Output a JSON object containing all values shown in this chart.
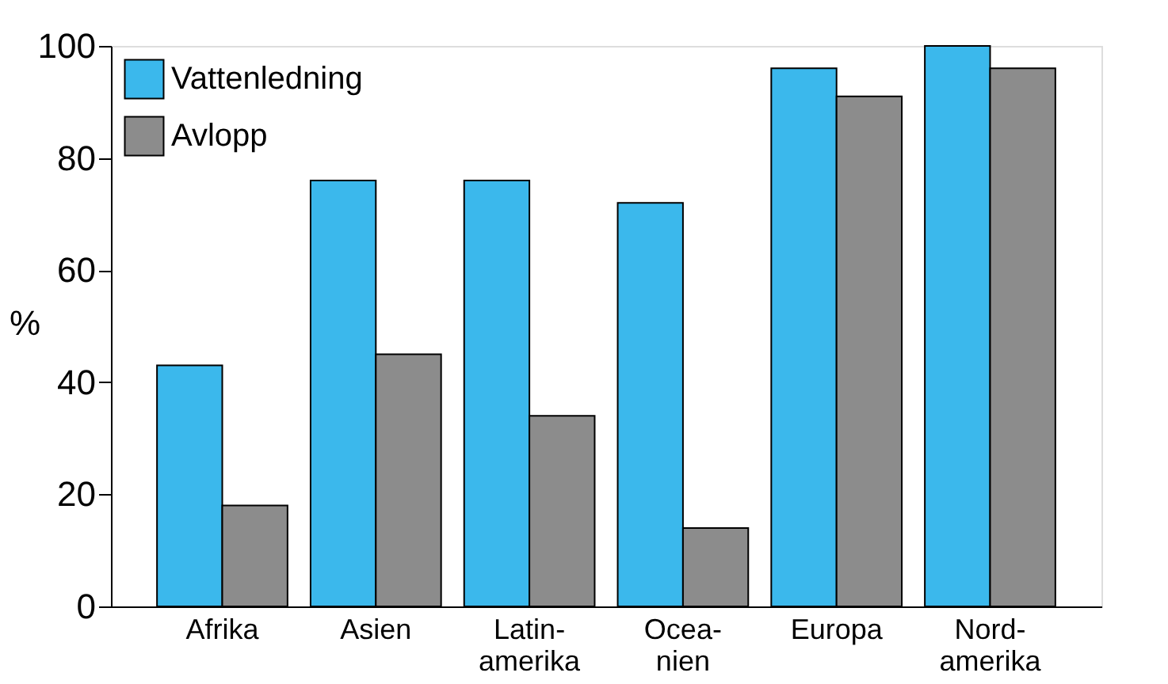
{
  "chart_data": {
    "type": "bar",
    "ylabel": "%",
    "categories": [
      "Afrika",
      "Asien",
      "Latin-\namerika",
      "Ocea-\nnien",
      "Europa",
      "Nord-\namerika"
    ],
    "series": [
      {
        "name": "Vattenledning",
        "color": "#3bb8ec",
        "values": [
          43,
          76,
          76,
          72,
          96,
          100
        ]
      },
      {
        "name": "Avlopp",
        "color": "#8c8c8c",
        "values": [
          18,
          45,
          34,
          14,
          91,
          96
        ]
      }
    ],
    "ylim": [
      0,
      100
    ],
    "yticks": [
      0,
      20,
      40,
      60,
      80,
      100
    ],
    "grid": false,
    "legend": "top left"
  }
}
